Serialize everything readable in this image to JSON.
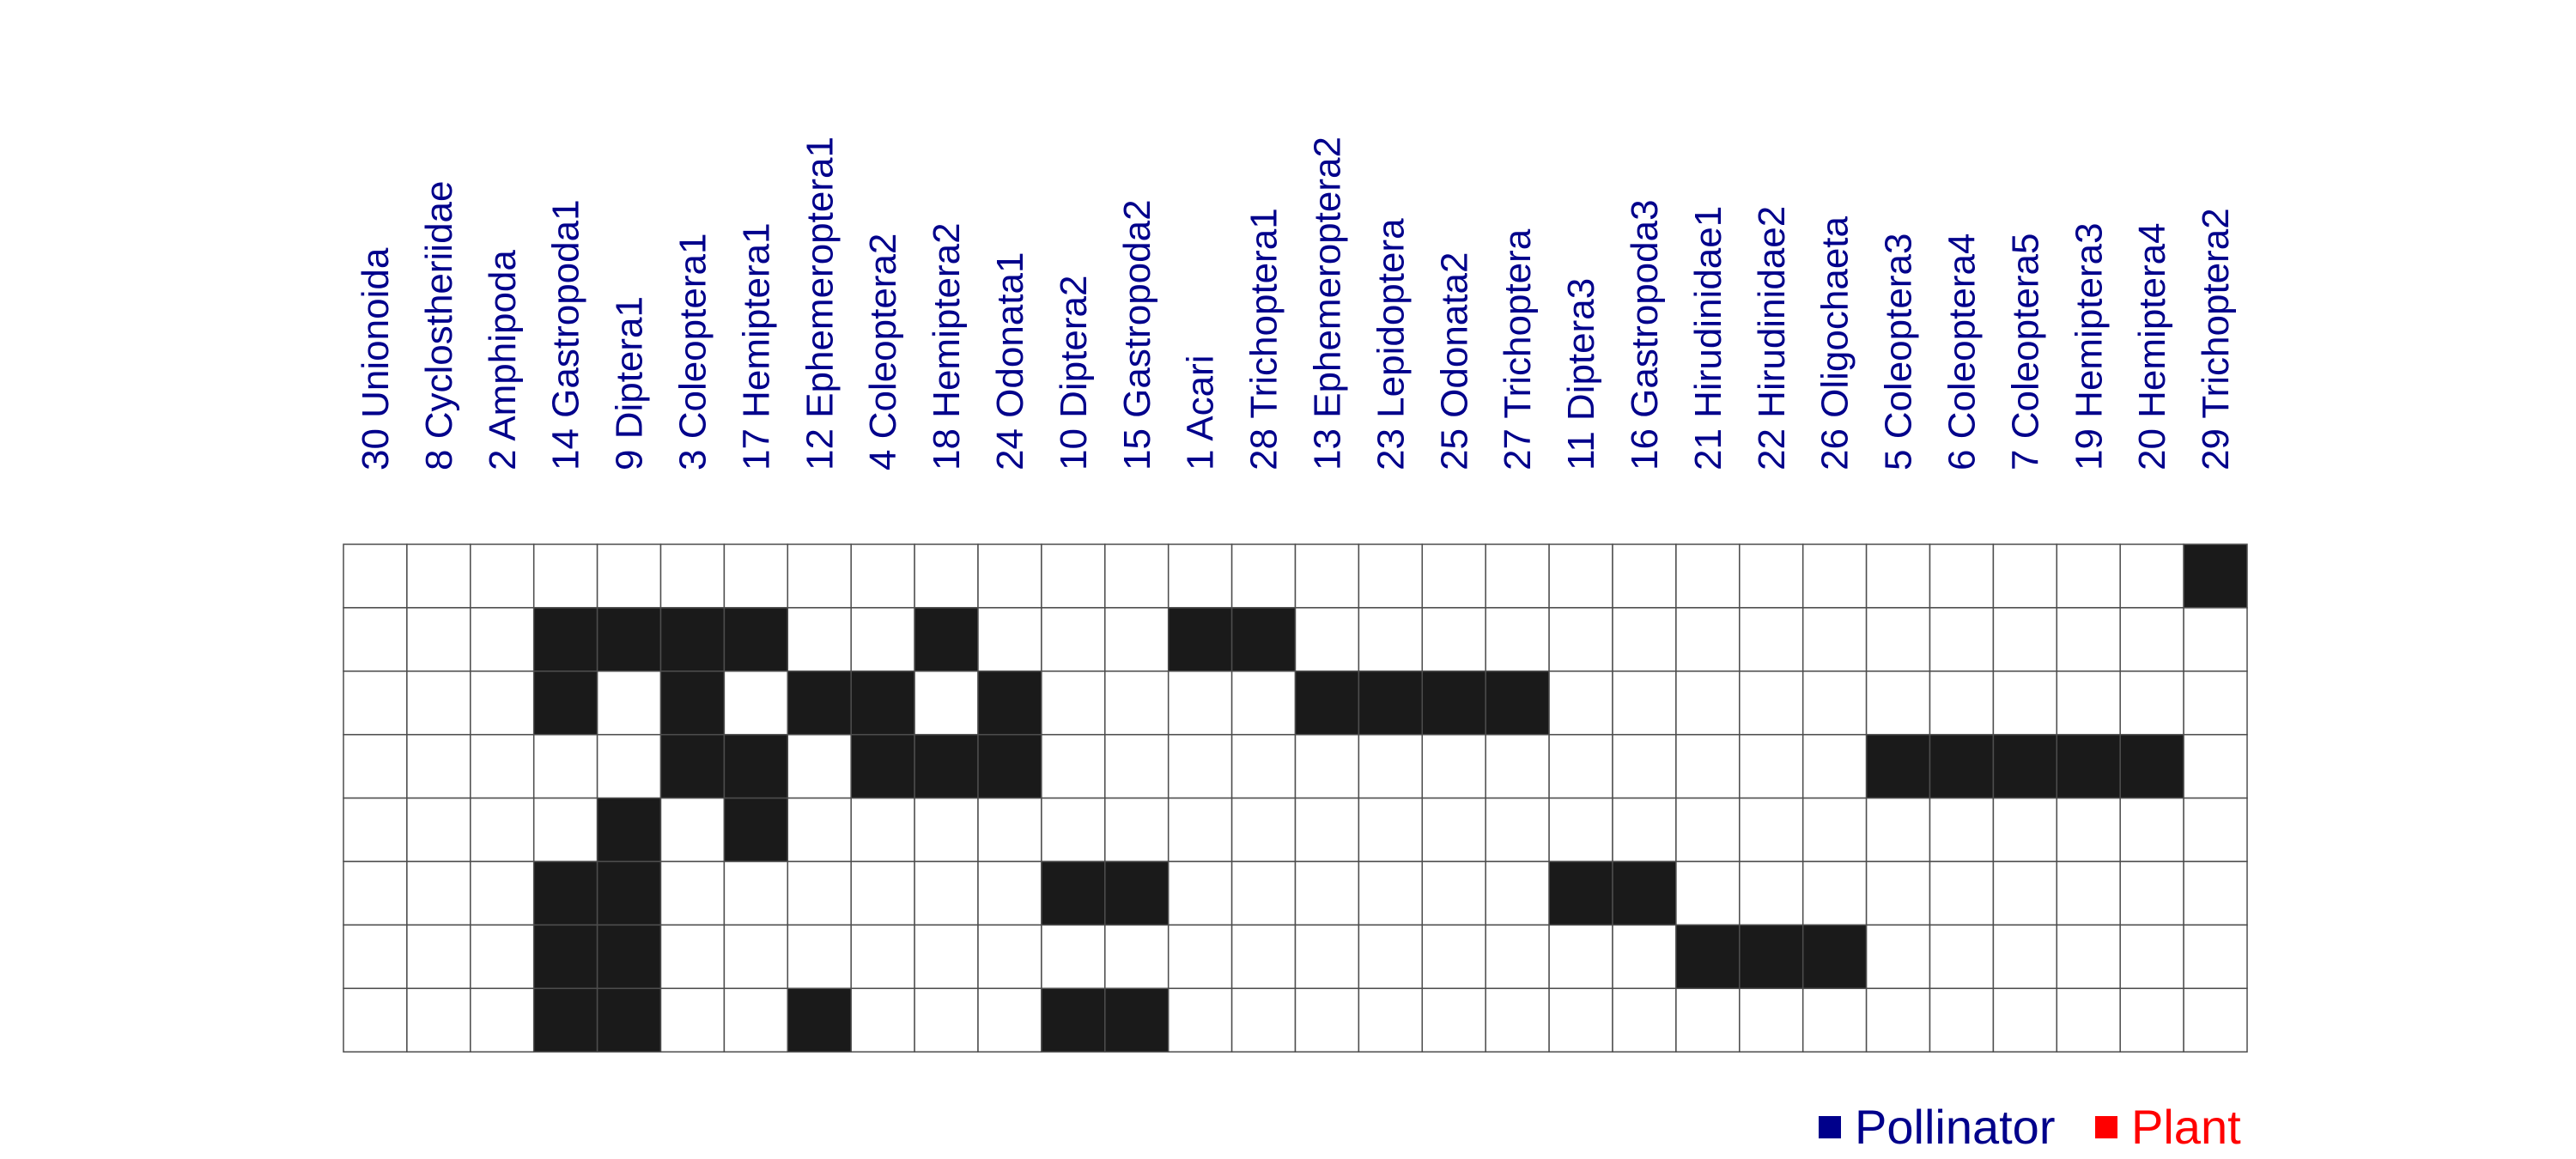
{
  "colors": {
    "pollinator": "#00008b",
    "plant": "#ff0000",
    "filled": "#1a1a1a",
    "empty": "#ffffff",
    "grid": "#4d4d4d"
  },
  "legend": {
    "pollinator_label": "Pollinator",
    "plant_label": "Plant"
  },
  "chart_data": {
    "type": "heatmap",
    "title": "",
    "row_labels": [],
    "columns": [
      "30 Unionoida",
      "8 Cyclostheriidae",
      "2 Amphipoda",
      "14 Gastropoda1",
      "9 Diptera1",
      "3 Coleoptera1",
      "17 Hemiptera1",
      "12 Ephemeroptera1",
      "4 Coleoptera2",
      "18 Hemiptera2",
      "24 Odonata1",
      "10 Diptera2",
      "15 Gastropoda2",
      "1 Acari",
      "28 Trichoptera1",
      "13 Ephemeroptera2",
      "23 Lepidoptera",
      "25 Odonata2",
      "27 Trichoptera",
      "11 Diptera3",
      "16 Gastropoda3",
      "21 Hirudinidae1",
      "22 Hirudinidae2",
      "26 Oligochaeta",
      "5 Coleoptera3",
      "6 Coleoptera4",
      "7 Coleoptera5",
      "19 Hemiptera3",
      "20 Hemiptera4",
      "29 Trichoptera2"
    ],
    "matrix": [
      [
        0,
        0,
        0,
        0,
        0,
        0,
        0,
        0,
        0,
        0,
        0,
        0,
        0,
        0,
        0,
        0,
        0,
        0,
        0,
        0,
        0,
        0,
        0,
        0,
        0,
        0,
        0,
        0,
        0,
        1
      ],
      [
        0,
        0,
        0,
        1,
        1,
        1,
        1,
        0,
        0,
        1,
        0,
        0,
        0,
        1,
        1,
        0,
        0,
        0,
        0,
        0,
        0,
        0,
        0,
        0,
        0,
        0,
        0,
        0,
        0,
        0
      ],
      [
        0,
        0,
        0,
        1,
        0,
        1,
        0,
        1,
        1,
        0,
        1,
        0,
        0,
        0,
        0,
        1,
        1,
        1,
        1,
        0,
        0,
        0,
        0,
        0,
        0,
        0,
        0,
        0,
        0,
        0
      ],
      [
        0,
        0,
        0,
        0,
        0,
        1,
        1,
        0,
        1,
        1,
        1,
        0,
        0,
        0,
        0,
        0,
        0,
        0,
        0,
        0,
        0,
        0,
        0,
        0,
        1,
        1,
        1,
        1,
        1,
        0
      ],
      [
        0,
        0,
        0,
        0,
        1,
        0,
        1,
        0,
        0,
        0,
        0,
        0,
        0,
        0,
        0,
        0,
        0,
        0,
        0,
        0,
        0,
        0,
        0,
        0,
        0,
        0,
        0,
        0,
        0,
        0
      ],
      [
        0,
        0,
        0,
        1,
        1,
        0,
        0,
        0,
        0,
        0,
        0,
        1,
        1,
        0,
        0,
        0,
        0,
        0,
        0,
        1,
        1,
        0,
        0,
        0,
        0,
        0,
        0,
        0,
        0,
        0
      ],
      [
        0,
        0,
        0,
        1,
        1,
        0,
        0,
        0,
        0,
        0,
        0,
        0,
        0,
        0,
        0,
        0,
        0,
        0,
        0,
        0,
        0,
        1,
        1,
        1,
        0,
        0,
        0,
        0,
        0,
        0
      ],
      [
        0,
        0,
        0,
        1,
        1,
        0,
        0,
        1,
        0,
        0,
        0,
        1,
        1,
        0,
        0,
        0,
        0,
        0,
        0,
        0,
        0,
        0,
        0,
        0,
        0,
        0,
        0,
        0,
        0,
        0
      ]
    ]
  }
}
